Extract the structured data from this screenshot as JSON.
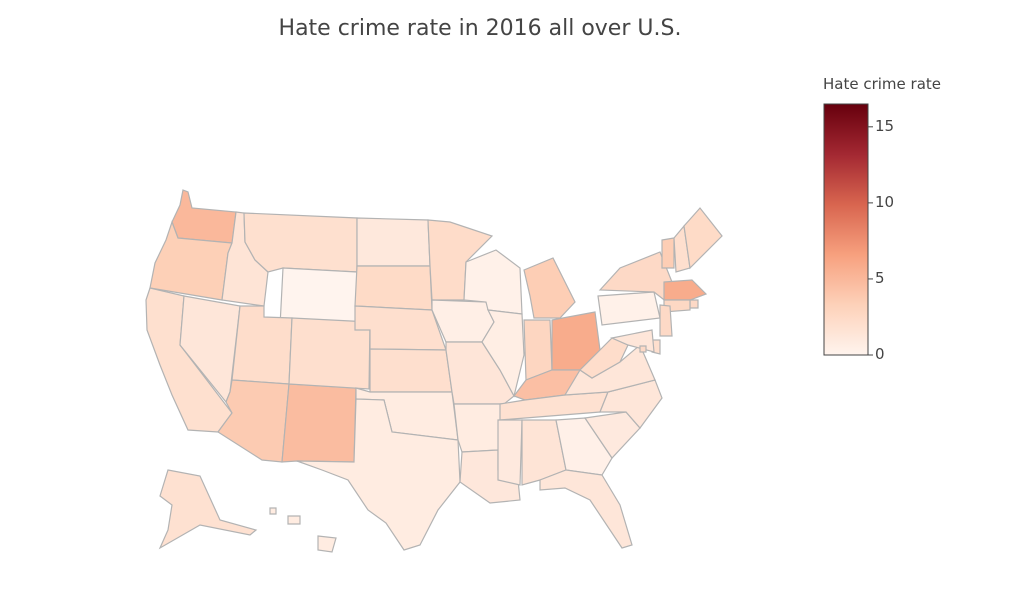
{
  "chart_data": {
    "type": "choropleth",
    "title": "Hate crime rate in 2016 all over U.S.",
    "colorbar": {
      "title": "Hate crime rate",
      "range": [
        0,
        16.5
      ],
      "ticks": [
        0,
        5,
        10,
        15
      ],
      "colorscale": [
        "#fff4ee",
        "#fdd1b9",
        "#f7a07e",
        "#d8654f",
        "#a32832",
        "#67000d"
      ]
    },
    "locations": [
      "WA",
      "OR",
      "CA",
      "NV",
      "ID",
      "MT",
      "WY",
      "UT",
      "AZ",
      "NM",
      "CO",
      "ND",
      "SD",
      "NE",
      "KS",
      "OK",
      "TX",
      "MN",
      "IA",
      "MO",
      "AR",
      "LA",
      "WI",
      "IL",
      "MI",
      "IN",
      "OH",
      "KY",
      "TN",
      "MS",
      "AL",
      "GA",
      "FL",
      "SC",
      "NC",
      "VA",
      "WV",
      "PA",
      "NY",
      "VT",
      "NH",
      "ME",
      "MA",
      "RI",
      "CT",
      "NJ",
      "DE",
      "MD",
      "DC",
      "AK",
      "HI"
    ],
    "values": [
      5.0,
      3.4,
      1.9,
      1.3,
      1.5,
      1.9,
      0.0,
      2.2,
      3.7,
      4.7,
      2.0,
      1.1,
      2.4,
      2.0,
      2.0,
      0.8,
      0.8,
      2.3,
      0.5,
      1.4,
      0.8,
      1.2,
      0.3,
      0.6,
      3.5,
      2.8,
      5.8,
      4.5,
      1.8,
      1.0,
      1.5,
      0.4,
      1.3,
      1.0,
      1.3,
      1.3,
      2.2,
      0.3,
      2.5,
      3.5,
      2.0,
      2.4,
      5.8,
      2.5,
      2.6,
      2.5,
      2.0,
      1.3,
      2.5,
      1.8,
      0.8
    ]
  }
}
